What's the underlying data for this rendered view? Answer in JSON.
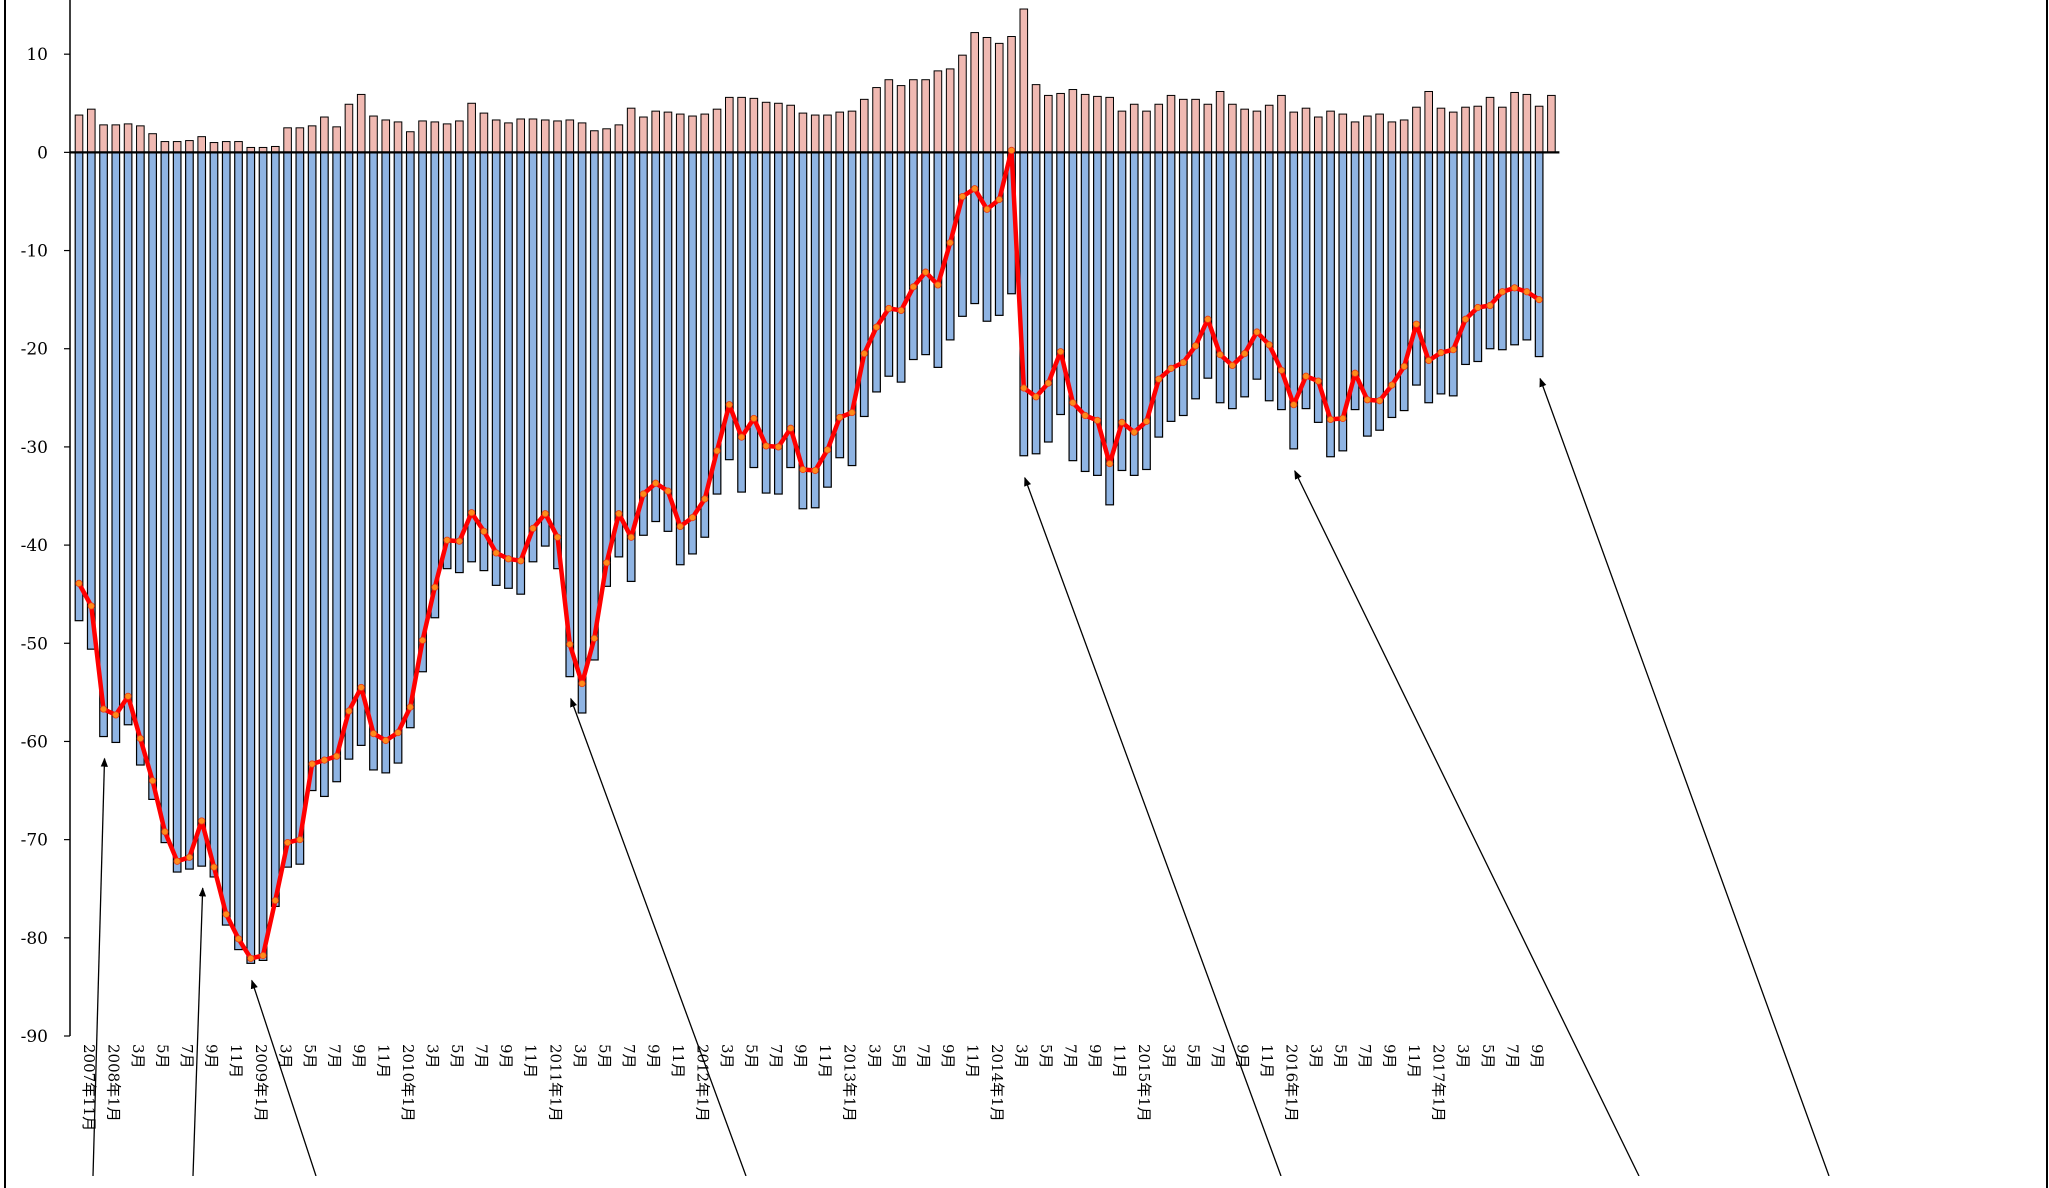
{
  "chart_data": {
    "type": "bar",
    "title": "",
    "xlabel": "",
    "ylabel": "",
    "ylim": [
      -90,
      14.5
    ],
    "yticks": [
      10,
      0,
      -10,
      -20,
      -30,
      -40,
      -50,
      -60,
      -70,
      -80,
      -90
    ],
    "grid": false,
    "legend": "none",
    "x_axis_labels": [
      "2007年11月",
      "2008年1月",
      "3月",
      "5月",
      "7月",
      "9月",
      "11月",
      "2009年1月",
      "3月",
      "5月",
      "7月",
      "9月",
      "11月",
      "2010年1月",
      "3月",
      "5月",
      "7月",
      "9月",
      "11月",
      "2011年1月",
      "3月",
      "5月",
      "7月",
      "9月",
      "11月",
      "2012年1月",
      "3月",
      "5月",
      "7月",
      "9月",
      "11月",
      "2013年1月",
      "3月",
      "5月",
      "7月",
      "9月",
      "11月",
      "2014年1月",
      "3月",
      "5月",
      "7月",
      "9月",
      "11月",
      "2015年1月",
      "3月",
      "5月",
      "7月",
      "9月",
      "11月",
      "2016年1月",
      "3月",
      "5月",
      "7月",
      "9月",
      "11月",
      "2017年1月",
      "3月",
      "5月",
      "7月",
      "9月"
    ],
    "series": [
      {
        "kind": "positive-bars",
        "values": [
          3.8,
          4.4,
          2.8,
          2.8,
          2.9,
          2.7,
          1.9,
          1.1,
          1.1,
          1.2,
          1.6,
          1.0,
          1.1,
          1.1,
          0.5,
          0.5,
          0.6,
          2.5,
          2.5,
          2.7,
          3.6,
          2.6,
          4.9,
          5.9,
          3.7,
          3.3,
          3.1,
          2.1,
          3.2,
          3.1,
          2.9,
          3.2,
          5.0,
          4.0,
          3.3,
          3.0,
          3.4,
          3.4,
          3.3,
          3.2,
          3.3,
          3.0,
          2.2,
          2.4,
          2.8,
          4.5,
          3.6,
          4.2,
          4.1,
          3.9,
          3.7,
          3.9,
          4.4,
          5.6,
          5.6,
          5.5,
          5.1,
          5.0,
          4.8,
          4.0,
          3.8,
          3.8,
          4.1,
          4.2,
          5.4,
          6.6,
          7.4,
          6.8,
          7.4,
          7.4,
          8.3,
          8.5,
          9.9,
          12.2,
          11.7,
          11.1,
          11.8,
          14.6,
          6.9,
          5.8,
          6.0,
          6.4,
          5.9,
          5.7,
          5.6,
          4.2,
          4.9,
          4.2,
          4.9,
          5.8,
          5.4,
          5.4,
          4.9,
          6.2,
          4.9,
          4.4,
          4.2,
          4.8,
          5.8,
          4.1,
          4.5,
          3.6,
          4.2,
          3.9,
          3.1,
          3.7,
          3.9,
          3.1,
          3.3,
          4.6,
          6.2,
          4.5,
          4.1,
          4.6,
          4.7,
          5.6,
          4.6,
          6.1,
          5.9,
          4.7,
          5.8
        ]
      },
      {
        "kind": "negative-bars",
        "values": [
          -47.7,
          -50.6,
          -59.5,
          -60.1,
          -58.3,
          -62.4,
          -65.9,
          -70.3,
          -73.3,
          -73.0,
          -72.7,
          -73.8,
          -78.7,
          -81.2,
          -82.6,
          -82.3,
          -76.8,
          -72.8,
          -72.5,
          -65.0,
          -65.6,
          -64.1,
          -61.8,
          -60.4,
          -62.9,
          -63.2,
          -62.2,
          -58.6,
          -52.9,
          -47.4,
          -42.4,
          -42.8,
          -41.7,
          -42.6,
          -44.1,
          -44.4,
          -45.0,
          -41.7,
          -40.1,
          -42.4,
          -53.4,
          -57.1,
          -51.7,
          -44.2,
          -41.2,
          -43.7,
          -39.0,
          -37.6,
          -38.6,
          -42.0,
          -40.9,
          -39.2,
          -34.8,
          -31.3,
          -34.6,
          -32.1,
          -34.7,
          -34.8,
          -32.1,
          -36.3,
          -36.2,
          -34.1,
          -31.1,
          -31.9,
          -26.9,
          -24.4,
          -22.8,
          -23.4,
          -21.1,
          -20.6,
          -21.9,
          -19.1,
          -16.7,
          -15.4,
          -17.2,
          -16.6,
          -14.4,
          -30.9,
          -30.7,
          -29.5,
          -26.7,
          -31.4,
          -32.5,
          -32.9,
          -35.9,
          -32.4,
          -32.9,
          -32.3,
          -29.0,
          -27.4,
          -26.8,
          -25.1,
          -23.0,
          -25.5,
          -26.1,
          -24.9,
          -23.1,
          -25.3,
          -26.2,
          -30.2,
          -26.1,
          -27.5,
          -31.0,
          -30.4,
          -26.2,
          -28.9,
          -28.3,
          -27.0,
          -26.3,
          -23.7,
          -25.5,
          -24.6,
          -24.8,
          -21.6,
          -21.3,
          -20.0,
          -20.1,
          -19.6,
          -19.1,
          -20.8
        ]
      },
      {
        "kind": "line",
        "color": "#ff0000",
        "marker_color": "#ff8c1a",
        "values": [
          -43.9,
          -46.2,
          -56.7,
          -57.3,
          -55.4,
          -59.7,
          -64.0,
          -69.2,
          -72.2,
          -71.8,
          -68.1,
          -72.8,
          -77.6,
          -80.1,
          -82.1,
          -81.8,
          -76.2,
          -70.3,
          -70.0,
          -62.3,
          -61.9,
          -61.5,
          -56.9,
          -54.5,
          -59.2,
          -59.9,
          -59.1,
          -56.5,
          -49.7,
          -44.3,
          -39.5,
          -39.6,
          -36.7,
          -38.6,
          -40.8,
          -41.4,
          -41.6,
          -38.3,
          -36.8,
          -39.2,
          -50.1,
          -54.1,
          -49.5,
          -41.8,
          -36.8,
          -39.2,
          -34.8,
          -33.7,
          -34.5,
          -38.1,
          -37.2,
          -35.3,
          -30.4,
          -25.7,
          -29.0,
          -27.1,
          -29.9,
          -30.0,
          -28.1,
          -32.3,
          -32.4,
          -30.3,
          -27.0,
          -26.5,
          -20.5,
          -17.8,
          -15.9,
          -16.1,
          -13.7,
          -12.2,
          -13.5,
          -9.2,
          -4.5,
          -3.7,
          -5.8,
          -4.8,
          0.2,
          -24.0,
          -24.9,
          -23.5,
          -20.3,
          -25.5,
          -26.8,
          -27.3,
          -31.7,
          -27.5,
          -28.5,
          -27.4,
          -23.1,
          -22.0,
          -21.4,
          -19.7,
          -17.0,
          -20.6,
          -21.7,
          -20.5,
          -18.3,
          -19.6,
          -22.2,
          -25.7,
          -22.8,
          -23.3,
          -27.2,
          -27.1,
          -22.5,
          -25.2,
          -25.3,
          -23.7,
          -21.8,
          -17.5,
          -21.2,
          -20.4,
          -20.1,
          -17.0,
          -15.8,
          -15.6,
          -14.2,
          -13.8,
          -14.2,
          -15.0
        ]
      }
    ],
    "annotations": [
      {
        "kind": "arrow",
        "target_index": 2
      },
      {
        "kind": "arrow",
        "target_index": 10
      },
      {
        "kind": "arrow",
        "target_index": 14
      },
      {
        "kind": "arrow",
        "target_index": 40
      },
      {
        "kind": "arrow",
        "target_index": 77
      },
      {
        "kind": "arrow",
        "target_index": 99
      },
      {
        "kind": "arrow",
        "target_index": 119
      }
    ]
  }
}
